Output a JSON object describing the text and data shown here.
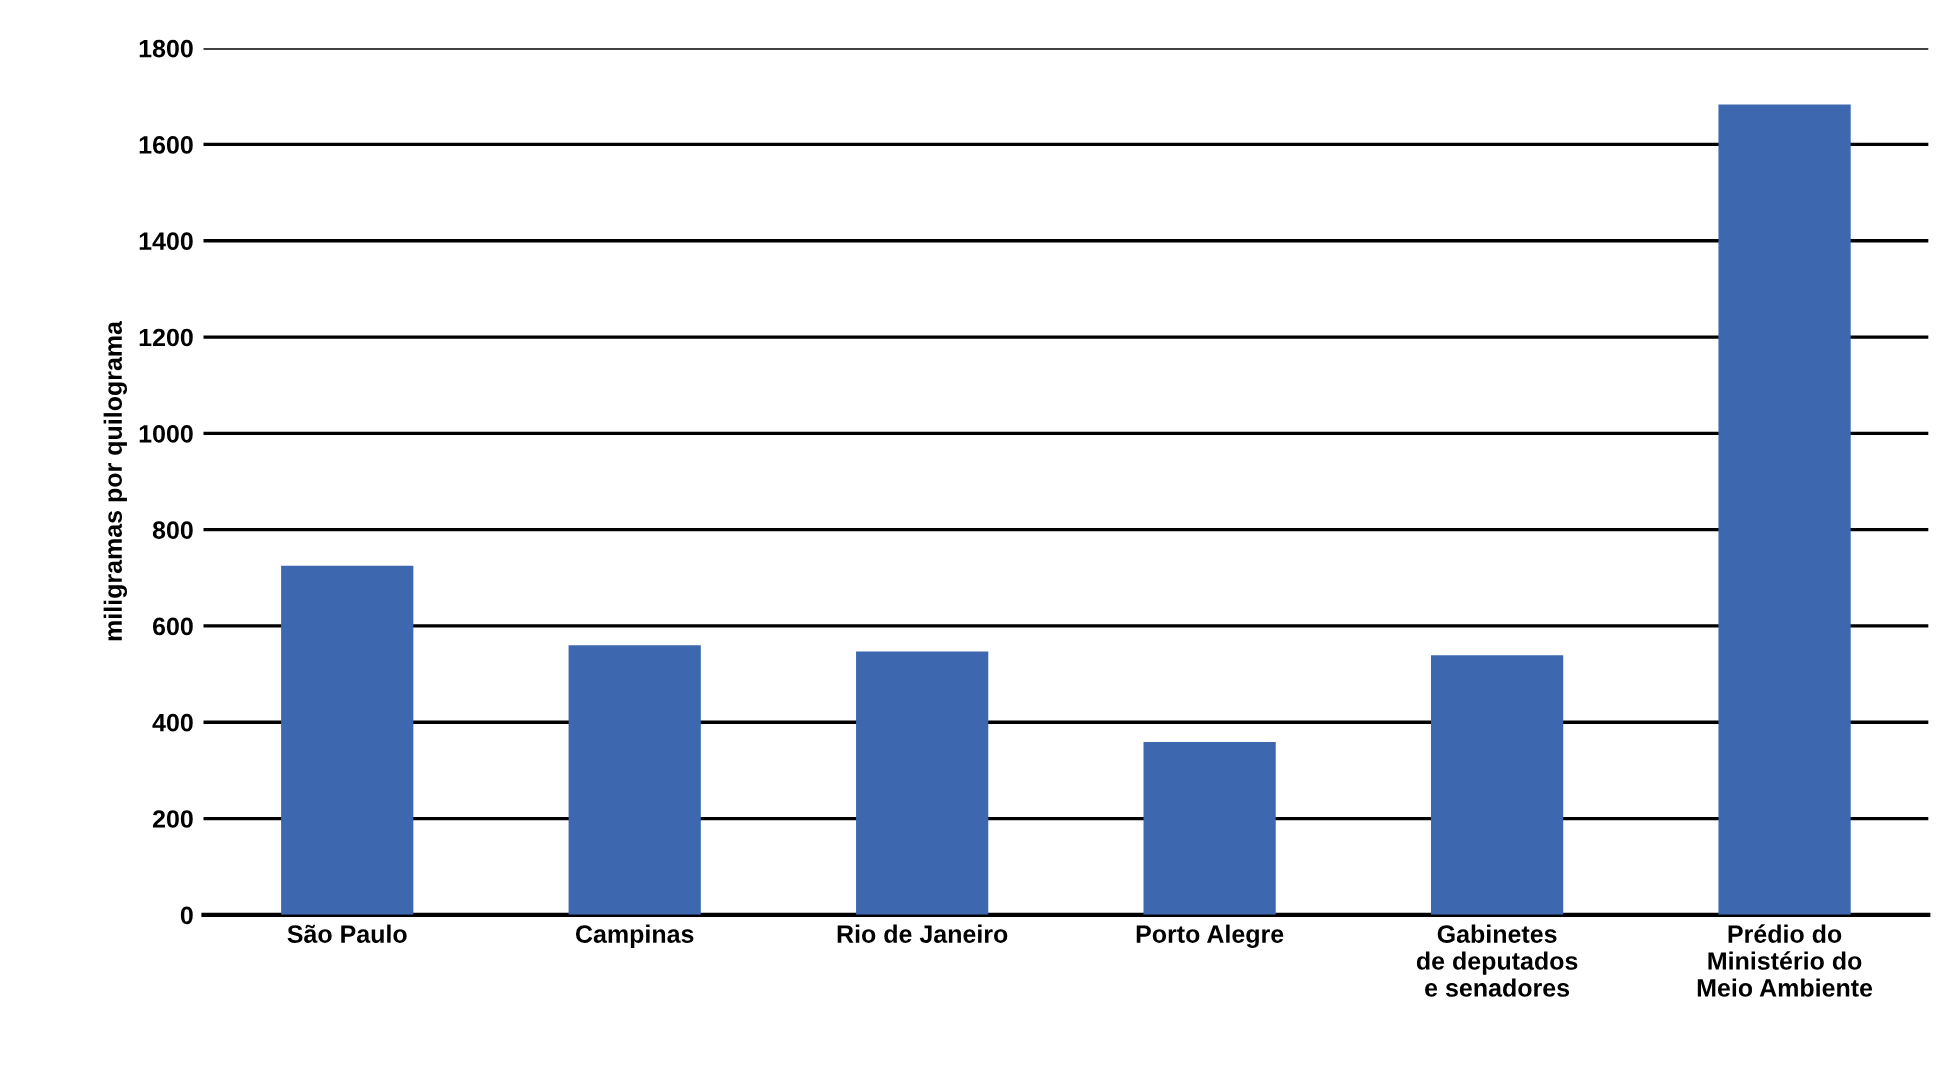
{
  "chart_data": {
    "type": "bar",
    "ylabel": "miligramas por quilograma",
    "categories": [
      "São Paulo",
      "Campinas",
      "Rio de Janeiro",
      "Porto Alegre",
      "Gabinetes\nde deputados\ne senadores",
      "Prédio do\nMinistério do\nMeio Ambiente"
    ],
    "values": [
      725,
      560,
      547,
      359,
      539,
      1683
    ],
    "color": "#3d68b0",
    "ylim": [
      0,
      1800
    ],
    "yticks": [
      0,
      200,
      400,
      600,
      800,
      1000,
      1200,
      1400,
      1600,
      1800
    ],
    "grid": "y"
  }
}
